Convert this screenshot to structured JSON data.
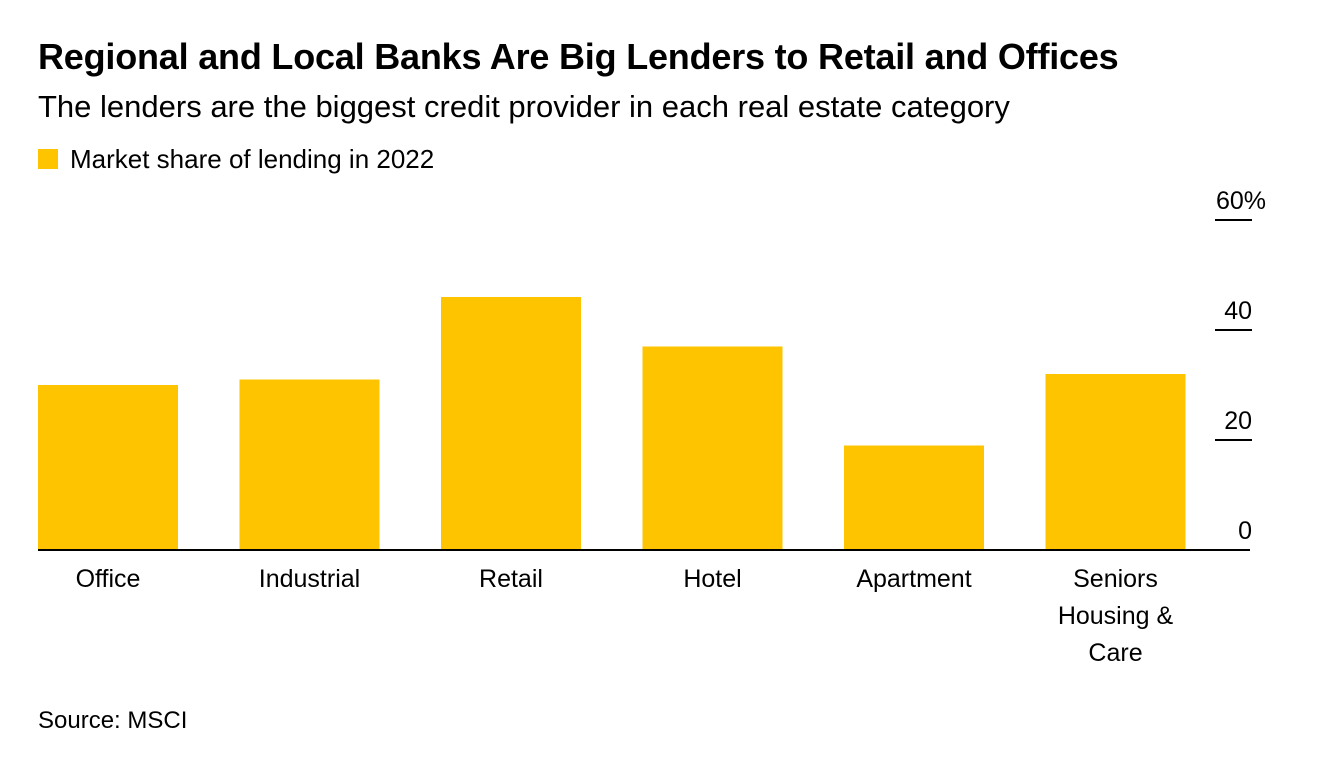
{
  "chart_data": {
    "type": "bar",
    "title": "Regional and Local Banks Are Big Lenders to Retail and Offices",
    "subtitle": "The lenders are the biggest credit provider in each real estate category",
    "legend": [
      "Market share of lending in 2022"
    ],
    "categories": [
      "Office",
      "Industrial",
      "Retail",
      "Hotel",
      "Apartment",
      "Seniors Housing & Care"
    ],
    "series": [
      {
        "name": "Market share of lending in 2022",
        "values": [
          30,
          31,
          46,
          37,
          19,
          32
        ]
      }
    ],
    "ylim": [
      0,
      60
    ],
    "yticks": [
      0,
      20,
      40,
      60
    ],
    "ytick_labels": [
      "0",
      "20",
      "40",
      "60%"
    ],
    "y_axis_position": "right",
    "grid": false,
    "legend_position": "top-left",
    "color": "#ffc400"
  },
  "source": "Source: MSCI"
}
